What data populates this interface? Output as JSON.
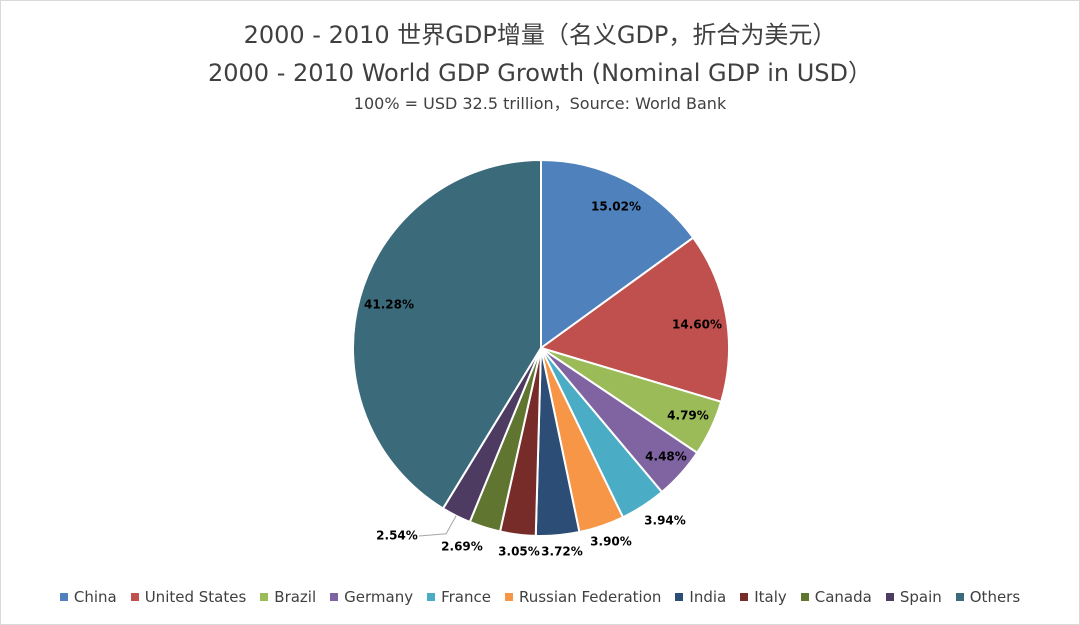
{
  "chart_data": {
    "type": "pie",
    "title": "2000 - 2010 世界GDP增量（名义GDP，折合为美元）",
    "title_en": "2000 - 2010 World GDP Growth (Nominal GDP in USD）",
    "subtitle": "100% = USD 32.5 trillion，Source: World Bank",
    "legend_position": "bottom",
    "slices": [
      {
        "name": "China",
        "value": 15.02,
        "label": "15.02%",
        "color": "#4f81bd"
      },
      {
        "name": "United States",
        "value": 14.6,
        "label": "14.60%",
        "color": "#c0504d"
      },
      {
        "name": "Brazil",
        "value": 4.79,
        "label": "4.79%",
        "color": "#9bbb59"
      },
      {
        "name": "Germany",
        "value": 4.48,
        "label": "4.48%",
        "color": "#8064a2"
      },
      {
        "name": "France",
        "value": 3.94,
        "label": "3.94%",
        "color": "#4bacc6"
      },
      {
        "name": "Russian Federation",
        "value": 3.9,
        "label": "3.90%",
        "color": "#f79646"
      },
      {
        "name": "India",
        "value": 3.72,
        "label": "3.72%",
        "color": "#2c4d75"
      },
      {
        "name": "Italy",
        "value": 3.05,
        "label": "3.05%",
        "color": "#772c2a"
      },
      {
        "name": "Canada",
        "value": 2.69,
        "label": "2.69%",
        "color": "#5f7530"
      },
      {
        "name": "Spain",
        "value": 2.54,
        "label": "2.54%",
        "color": "#4d3b62"
      },
      {
        "name": "Others",
        "value": 41.28,
        "label": "41.28%",
        "color": "#3b6a7b"
      }
    ]
  }
}
